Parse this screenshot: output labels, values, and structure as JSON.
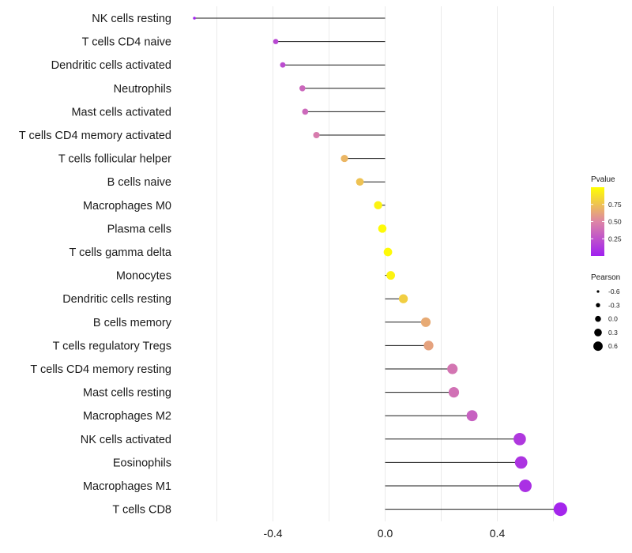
{
  "chart_data": {
    "type": "lollipop",
    "categories": [
      "NK cells resting",
      "T cells CD4 naive",
      "Dendritic cells activated",
      "Neutrophils",
      "Mast cells activated",
      "T cells CD4 memory activated",
      "T cells follicular helper",
      "B cells naive",
      "Macrophages M0",
      "Plasma cells",
      "T cells gamma delta",
      "Monocytes",
      "Dendritic cells resting",
      "B cells memory",
      "T cells regulatory  Tregs",
      "T cells CD4 memory resting",
      "Mast cells resting",
      "Macrophages M2",
      "NK cells activated",
      "Eosinophils",
      "Macrophages M1",
      "T cells CD8"
    ],
    "values": [
      -0.68,
      -0.39,
      -0.365,
      -0.295,
      -0.285,
      -0.245,
      -0.145,
      -0.09,
      -0.025,
      -0.01,
      0.01,
      0.02,
      0.065,
      0.145,
      0.155,
      0.24,
      0.245,
      0.31,
      0.48,
      0.485,
      0.5,
      0.625
    ],
    "pvalues": [
      0.02,
      0.2,
      0.22,
      0.35,
      0.36,
      0.45,
      0.7,
      0.75,
      0.95,
      0.98,
      0.98,
      0.95,
      0.8,
      0.65,
      0.62,
      0.42,
      0.4,
      0.32,
      0.12,
      0.1,
      0.08,
      0.03
    ],
    "xlim": [
      -0.73,
      0.66
    ],
    "x_ticks": [
      -0.4,
      0.0,
      0.4
    ],
    "x_tick_labels": [
      "-0.4",
      "0.0",
      "0.4"
    ],
    "xlabel": "",
    "ylabel": "",
    "grid": true,
    "legend_position": "right",
    "color_legend": {
      "title": "Pvalue",
      "ticks": [
        0.75,
        0.5,
        0.25
      ],
      "tick_labels": [
        "0.75",
        "0.50",
        "0.25"
      ],
      "range": [
        0.0,
        1.0
      ],
      "colors": {
        "low": "#a020f0",
        "mid": "#dd85a6",
        "high": "#ffff00"
      }
    },
    "size_legend": {
      "title": "Pearson",
      "values": [
        -0.6,
        -0.3,
        0.0,
        0.3,
        0.6
      ],
      "labels": [
        "-0.6",
        "-0.3",
        "0.0",
        "0.3",
        "0.6"
      ]
    }
  }
}
